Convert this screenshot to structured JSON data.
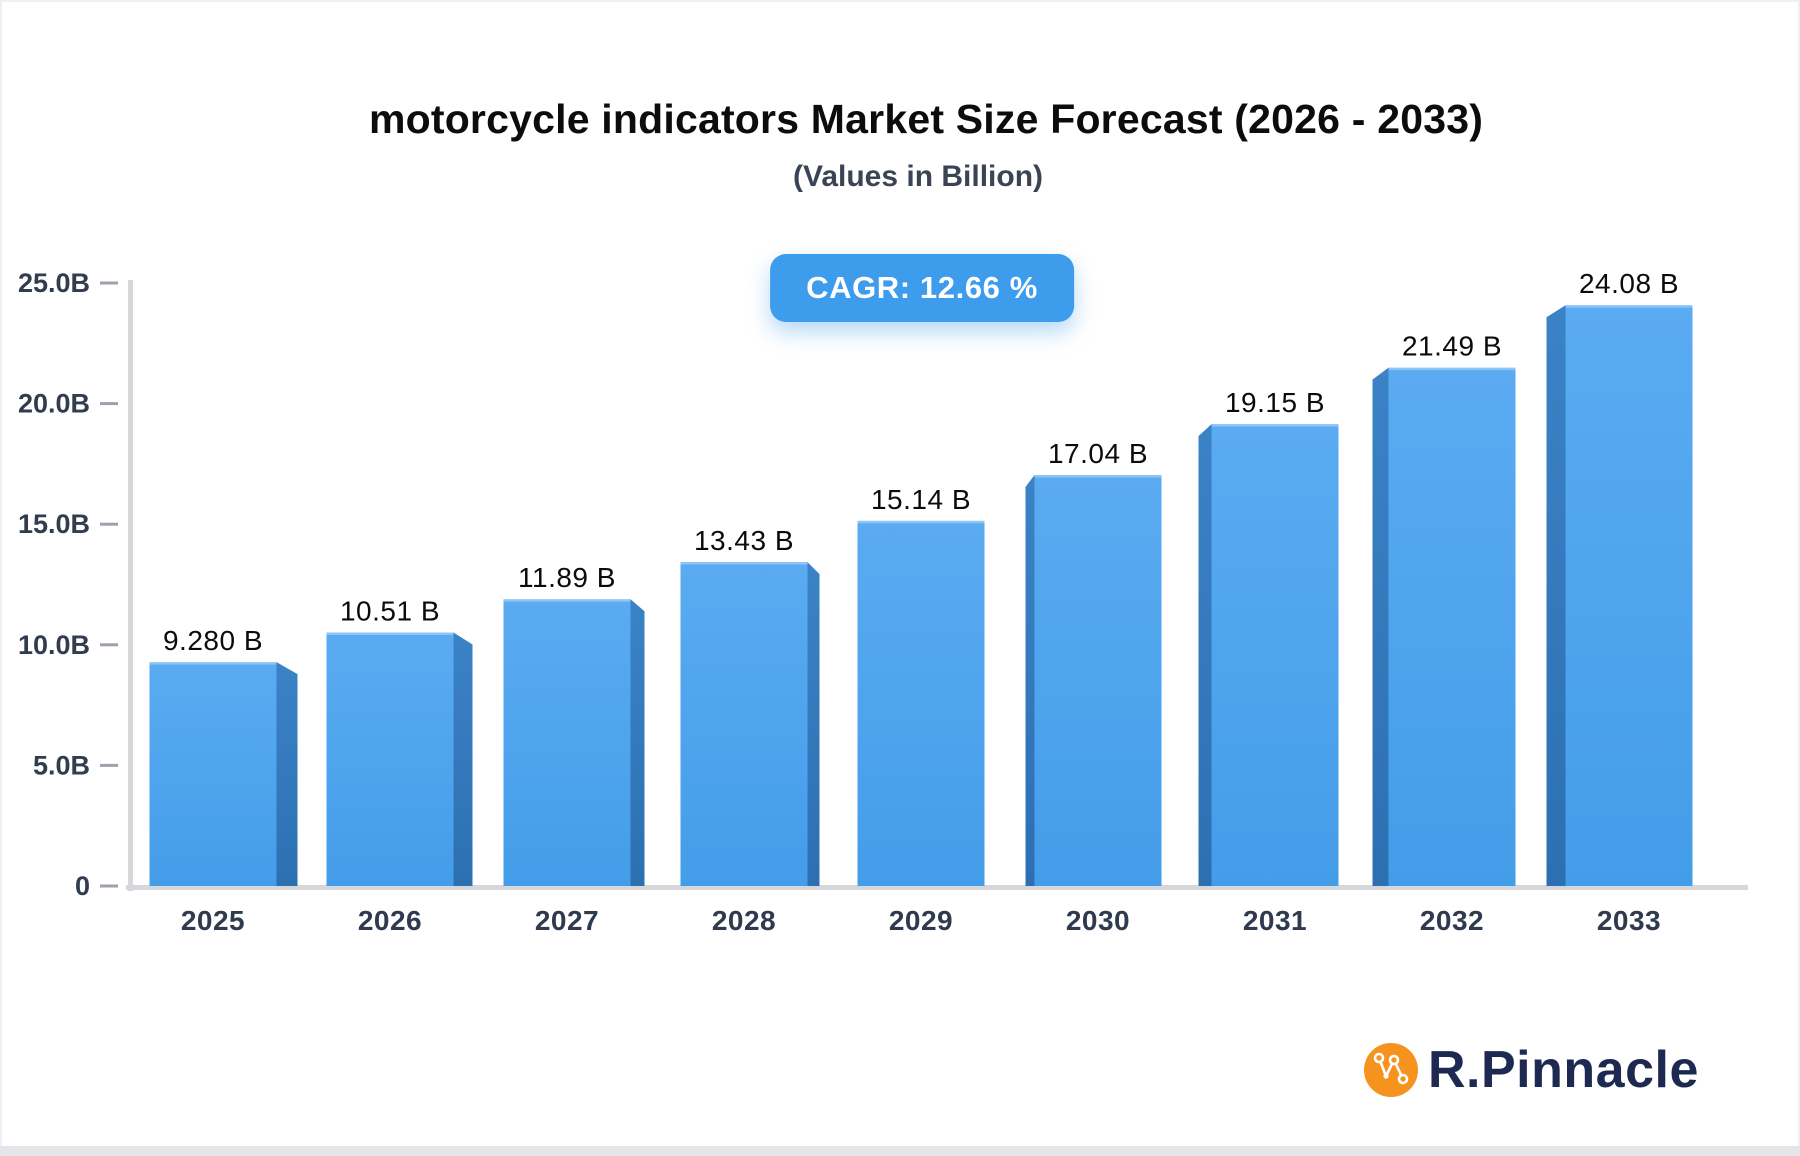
{
  "header": {
    "title": "motorcycle indicators Market Size Forecast (2026 - 2033)",
    "subtitle": "(Values in Billion)",
    "cagr_badge": "CAGR: 12.66 %"
  },
  "chart_data": {
    "type": "bar",
    "title": "motorcycle indicators Market Size Forecast (2026 - 2033)",
    "subtitle": "(Values in Billion)",
    "cagr": "12.66 %",
    "categories": [
      "2025",
      "2026",
      "2027",
      "2028",
      "2029",
      "2030",
      "2031",
      "2032",
      "2033"
    ],
    "values": [
      9.28,
      10.51,
      11.89,
      13.43,
      15.14,
      17.04,
      19.15,
      21.49,
      24.08
    ],
    "value_labels": [
      "9.280 B",
      "10.51 B",
      "11.89 B",
      "13.43 B",
      "15.14 B",
      "17.04 B",
      "19.15 B",
      "21.49 B",
      "24.08 B"
    ],
    "ylim": [
      0,
      25
    ],
    "y_tick_values": [
      0,
      5,
      10,
      15,
      20,
      25
    ],
    "y_tick_labels": [
      "0",
      "5.0B",
      "10.0B",
      "15.0B",
      "20.0B",
      "25.0B"
    ],
    "grid": false,
    "legend": "none",
    "colors": {
      "bar_front_top": "#5aabf1",
      "bar_front_bottom": "#449de9",
      "bar_side_top": "#3b82c6",
      "bar_side_bottom": "#2c70b2",
      "axis_line": "#d6d7db",
      "tick_dash": "#9aa2ac",
      "tick_text": "#313c4e",
      "category_text": "#2e3a4e",
      "value_text": "#0b0b0b",
      "badge_bg": "#3d9cec"
    }
  },
  "branding": {
    "name": "R.Pinnacle",
    "logo_color": "#f6931e",
    "text_color": "#1d2950"
  }
}
